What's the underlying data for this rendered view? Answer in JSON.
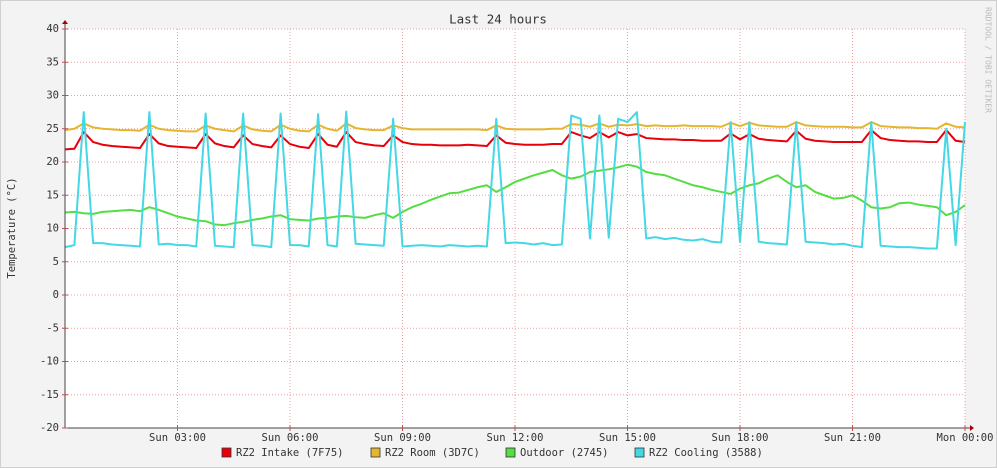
{
  "chart_data": {
    "type": "line",
    "title": "Last 24 hours",
    "y_label": "Temperature (°C)",
    "watermark": "RRDTOOL / TOBI OETIKER",
    "x": [
      0,
      0.25,
      0.5,
      0.75,
      1,
      1.25,
      1.5,
      1.75,
      2,
      2.25,
      2.5,
      2.75,
      3,
      3.25,
      3.5,
      3.75,
      4,
      4.25,
      4.5,
      4.75,
      5,
      5.25,
      5.5,
      5.75,
      6,
      6.25,
      6.5,
      6.75,
      7,
      7.25,
      7.5,
      7.75,
      8,
      8.25,
      8.5,
      8.75,
      9,
      9.25,
      9.5,
      9.75,
      10,
      10.25,
      10.5,
      10.75,
      11,
      11.25,
      11.5,
      11.75,
      12,
      12.25,
      12.5,
      12.75,
      13,
      13.25,
      13.5,
      13.75,
      14,
      14.25,
      14.5,
      14.75,
      15,
      15.25,
      15.5,
      15.75,
      16,
      16.25,
      16.5,
      16.75,
      17,
      17.25,
      17.5,
      17.75,
      18,
      18.25,
      18.5,
      18.75,
      19,
      19.25,
      19.5,
      19.75,
      20,
      20.25,
      20.5,
      20.75,
      21,
      21.25,
      21.5,
      21.75,
      22,
      22.25,
      22.5,
      22.75,
      23,
      23.25,
      23.5,
      23.75,
      24
    ],
    "xlim": [
      0,
      24
    ],
    "xticks": [
      {
        "value": 3,
        "label": "Sun 03:00"
      },
      {
        "value": 6,
        "label": "Sun 06:00"
      },
      {
        "value": 9,
        "label": "Sun 09:00"
      },
      {
        "value": 12,
        "label": "Sun 12:00"
      },
      {
        "value": 15,
        "label": "Sun 15:00"
      },
      {
        "value": 18,
        "label": "Sun 18:00"
      },
      {
        "value": 21,
        "label": "Sun 21:00"
      },
      {
        "value": 24,
        "label": "Mon 00:00"
      }
    ],
    "ylim": [
      -20,
      40
    ],
    "yticks": [
      -20,
      -15,
      -10,
      -5,
      0,
      5,
      10,
      15,
      20,
      25,
      30,
      35,
      40
    ],
    "grid": true,
    "series": [
      {
        "name": "RZ2 Intake (7F75)",
        "color": "#e8000b",
        "values": [
          21.9,
          22,
          24.5,
          23,
          22.6,
          22.4,
          22.3,
          22.2,
          22.1,
          24.2,
          22.8,
          22.4,
          22.3,
          22.2,
          22.1,
          24.2,
          22.8,
          22.4,
          22.2,
          24,
          22.7,
          22.4,
          22.2,
          24,
          22.7,
          22.3,
          22.1,
          24.2,
          22.6,
          22.3,
          24.5,
          23,
          22.7,
          22.5,
          22.4,
          24,
          23,
          22.7,
          22.6,
          22.6,
          22.5,
          22.5,
          22.5,
          22.6,
          22.5,
          22.4,
          24,
          22.9,
          22.7,
          22.6,
          22.6,
          22.6,
          22.7,
          22.7,
          24.5,
          24,
          23.6,
          24.5,
          23.7,
          24.5,
          24,
          24.2,
          23.6,
          23.5,
          23.4,
          23.4,
          23.3,
          23.3,
          23.2,
          23.2,
          23.2,
          24.3,
          23.4,
          24.2,
          23.5,
          23.3,
          23.2,
          23.1,
          24.7,
          23.5,
          23.2,
          23.1,
          23,
          23,
          23,
          23,
          24.8,
          23.6,
          23.3,
          23.2,
          23.1,
          23.1,
          23,
          23,
          24.8,
          23.2,
          23
        ]
      },
      {
        "name": "RZ2 Room (3D7C)",
        "color": "#e4b630",
        "values": [
          24.8,
          25,
          25.8,
          25.2,
          25,
          24.9,
          24.8,
          24.8,
          24.7,
          25.6,
          25,
          24.8,
          24.7,
          24.6,
          24.6,
          25.5,
          25,
          24.8,
          24.6,
          25.5,
          24.9,
          24.7,
          24.6,
          25.6,
          25,
          24.7,
          24.6,
          25.6,
          25,
          24.7,
          25.8,
          25.1,
          24.9,
          24.8,
          24.8,
          25.5,
          25.1,
          24.9,
          24.9,
          24.9,
          24.9,
          24.9,
          24.9,
          24.9,
          24.9,
          24.8,
          25.5,
          25,
          24.9,
          24.9,
          24.9,
          24.9,
          25,
          25,
          25.7,
          25.6,
          25.3,
          25.8,
          25.3,
          25.6,
          25.5,
          25.7,
          25.4,
          25.5,
          25.4,
          25.4,
          25.5,
          25.4,
          25.4,
          25.4,
          25.3,
          25.9,
          25.4,
          25.9,
          25.5,
          25.4,
          25.3,
          25.3,
          26,
          25.5,
          25.4,
          25.3,
          25.3,
          25.3,
          25.2,
          25.2,
          26,
          25.4,
          25.3,
          25.2,
          25.2,
          25.1,
          25.1,
          25,
          25.8,
          25.3,
          25.2
        ]
      },
      {
        "name": "Outdoor (2745)",
        "color": "#55dd44",
        "values": [
          12.4,
          12.5,
          12.3,
          12.2,
          12.5,
          12.6,
          12.7,
          12.8,
          12.6,
          13.2,
          12.8,
          12.3,
          11.8,
          11.5,
          11.2,
          11.1,
          10.6,
          10.5,
          10.8,
          11,
          11.3,
          11.5,
          11.8,
          12,
          11.4,
          11.3,
          11.2,
          11.5,
          11.6,
          11.8,
          11.9,
          11.7,
          11.6,
          12,
          12.3,
          11.6,
          12.5,
          13.2,
          13.7,
          14.3,
          14.8,
          15.3,
          15.4,
          15.8,
          16.2,
          16.5,
          15.5,
          16.2,
          17,
          17.5,
          18,
          18.4,
          18.8,
          18,
          17.5,
          17.8,
          18.5,
          18.7,
          18.9,
          19.2,
          19.6,
          19.3,
          18.5,
          18.2,
          18,
          17.5,
          17,
          16.5,
          16.2,
          15.8,
          15.5,
          15.2,
          16,
          16.5,
          16.8,
          17.5,
          18,
          17,
          16.2,
          16.5,
          15.5,
          15,
          14.5,
          14.6,
          15,
          14.2,
          13.2,
          13,
          13.2,
          13.8,
          13.9,
          13.6,
          13.4,
          13.2,
          12,
          12.5,
          13.5
        ]
      },
      {
        "name": "RZ2 Cooling (3588)",
        "color": "#44d8e4",
        "values": [
          7.2,
          7.5,
          27.5,
          7.8,
          7.8,
          7.6,
          7.5,
          7.4,
          7.3,
          27.5,
          7.6,
          7.7,
          7.5,
          7.5,
          7.3,
          27.3,
          7.4,
          7.3,
          7.2,
          27.3,
          7.5,
          7.4,
          7.2,
          27.3,
          7.5,
          7.5,
          7.3,
          27.2,
          7.5,
          7.3,
          27.6,
          7.7,
          7.6,
          7.5,
          7.4,
          26.5,
          7.3,
          7.4,
          7.5,
          7.4,
          7.3,
          7.5,
          7.4,
          7.3,
          7.4,
          7.3,
          26.5,
          7.8,
          7.9,
          7.8,
          7.6,
          7.8,
          7.5,
          7.6,
          27,
          26.5,
          8.5,
          27,
          8.6,
          26.5,
          26,
          27.5,
          8.5,
          8.7,
          8.4,
          8.6,
          8.3,
          8.2,
          8.4,
          8,
          7.9,
          26,
          8,
          26,
          8,
          7.8,
          7.7,
          7.6,
          26,
          8,
          7.9,
          7.8,
          7.6,
          7.7,
          7.4,
          7.2,
          26,
          7.4,
          7.3,
          7.2,
          7.2,
          7.1,
          7,
          7,
          25,
          7.5,
          26
        ]
      }
    ]
  }
}
